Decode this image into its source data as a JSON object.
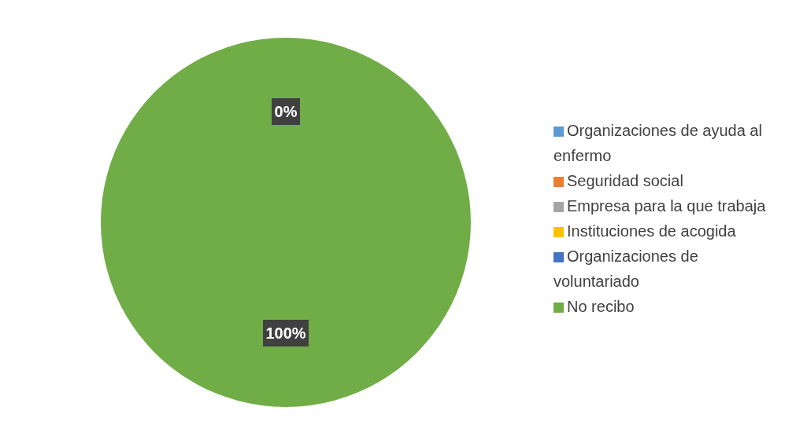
{
  "chart_data": {
    "type": "pie",
    "categories": [
      "Organizaciones de ayuda al enfermo",
      "Seguridad social",
      "Empresa para la que trabaja",
      "Instituciones de acogida",
      "Organizaciones de voluntariado",
      "No recibo"
    ],
    "values": [
      0,
      0,
      0,
      0,
      0,
      100
    ],
    "colors": [
      "#5b9bd5",
      "#ed7d31",
      "#a5a5a5",
      "#ffc000",
      "#4472c4",
      "#70ad47"
    ],
    "value_labels": [
      "0%",
      null,
      null,
      null,
      null,
      "100%"
    ],
    "legend": "right"
  }
}
